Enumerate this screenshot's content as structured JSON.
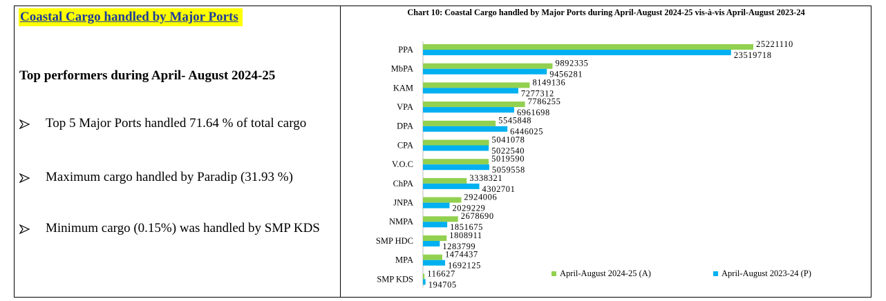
{
  "left": {
    "heading": "Coastal Cargo handled by Major Ports",
    "subheading": "Top performers during April- August 2024-25",
    "bullets": [
      "Top 5 Major Ports handled 71.64 % of total cargo",
      "Maximum cargo handled by Paradip (31.93 %)",
      "Minimum cargo (0.15%) was handled by SMP KDS"
    ]
  },
  "chart_data": {
    "type": "hbar",
    "title": "Chart 10: Coastal Cargo handled by Major Ports during April-August 2024-25 vis-à-vis April-August 2023-24",
    "categories": [
      "PPA",
      "MbPA",
      "KAM",
      "VPA",
      "DPA",
      "CPA",
      "V.O.C",
      "ChPA",
      "JNPA",
      "NMPA",
      "SMP HDC",
      "MPA",
      "SMP KDS"
    ],
    "series": [
      {
        "name": "April-August 2024-25 (A)",
        "color": "#92d050",
        "values": [
          25221110,
          9892335,
          8149136,
          7786255,
          5545848,
          5041078,
          5019590,
          3338321,
          2924006,
          2678690,
          1808911,
          1474437,
          116627
        ]
      },
      {
        "name": "April-August 2023-24 (P)",
        "color": "#00b0f0",
        "values": [
          23519718,
          9456281,
          7277312,
          6961698,
          6446025,
          5022540,
          5059558,
          4302701,
          2029229,
          1851675,
          1283799,
          1692125,
          194705
        ]
      }
    ],
    "legend": "bottom-right"
  }
}
